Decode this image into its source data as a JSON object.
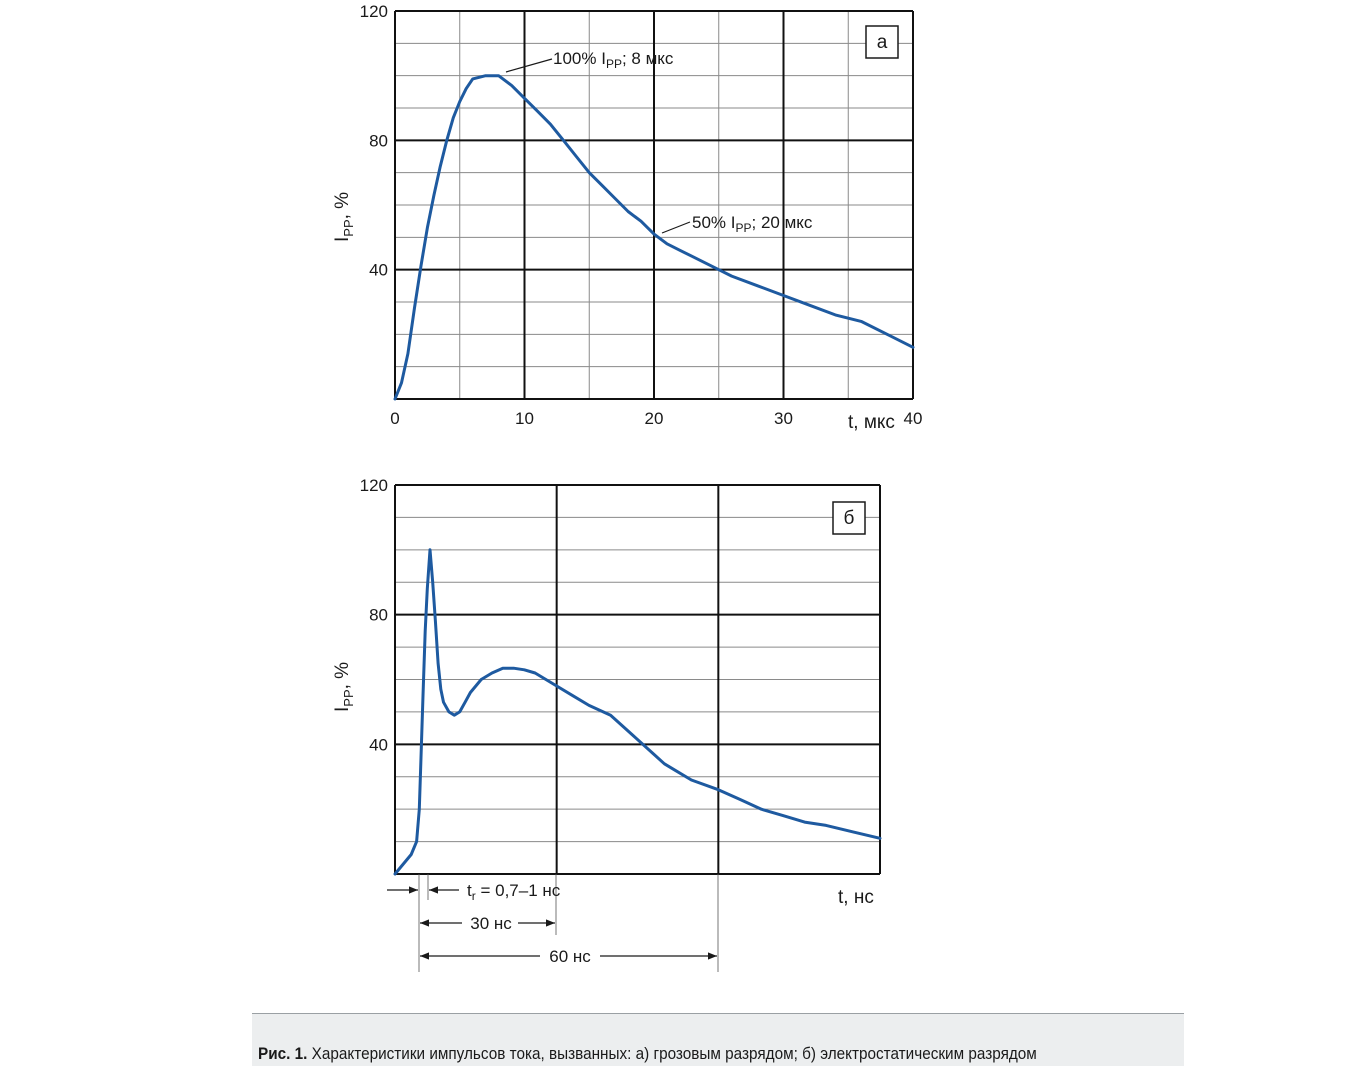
{
  "chart_data": [
    {
      "type": "line",
      "panel_label": "а",
      "xlabel": "t, мкс",
      "ylabel": "I_PP, %",
      "ylabel_main": "I",
      "ylabel_sub": "PP",
      "ylabel_rest": ", %",
      "xlim": [
        0,
        40
      ],
      "ylim": [
        0,
        120
      ],
      "x_ticks": [
        "0",
        "10",
        "20",
        "30",
        "40"
      ],
      "y_ticks": [
        "40",
        "80",
        "120"
      ],
      "grid": true,
      "series": [
        {
          "color": "#1e5aa0",
          "x": [
            0,
            0.5,
            1,
            1.5,
            2,
            2.5,
            3,
            3.5,
            4,
            4.5,
            5,
            5.5,
            6,
            6.5,
            7,
            7.5,
            8,
            9,
            10,
            11,
            12,
            13,
            14,
            15,
            16,
            17,
            18,
            19,
            20,
            21,
            22,
            23,
            24,
            25,
            26,
            28,
            30,
            32,
            34,
            35,
            36,
            38,
            40
          ],
          "y": [
            0,
            5,
            14,
            28,
            41,
            53,
            63,
            72,
            80,
            87,
            92,
            96,
            99,
            99.5,
            100,
            100,
            100,
            97,
            93,
            89,
            85,
            80,
            75,
            70,
            66,
            62,
            58,
            55,
            51,
            48,
            46,
            44,
            42,
            40,
            38,
            35,
            32,
            29,
            26,
            25,
            24,
            20,
            16
          ]
        }
      ],
      "annotations": [
        {
          "main": "100% I",
          "sub": "PP",
          "rest": "; 8 мкс",
          "at_x": 8,
          "at_y": 100
        },
        {
          "main": "50% I",
          "sub": "PP",
          "rest": "; 20 мкс",
          "at_x": 20,
          "at_y": 50
        }
      ]
    },
    {
      "type": "line",
      "panel_label": "б",
      "xlabel": "t, нс",
      "ylabel": "I_PP, %",
      "ylabel_main": "I",
      "ylabel_sub": "PP",
      "ylabel_rest": ", %",
      "xlim": [
        0,
        90
      ],
      "ylim": [
        0,
        120
      ],
      "y_ticks": [
        "40",
        "80",
        "120"
      ],
      "grid": true,
      "series": [
        {
          "color": "#1e5aa0",
          "x": [
            0,
            1,
            2,
            3,
            4,
            4.5,
            4.8,
            5.2,
            5.6,
            6,
            6.5,
            7,
            7.5,
            8,
            8.5,
            9,
            10,
            11,
            12,
            13,
            14,
            16,
            18,
            20,
            22,
            24,
            26,
            28,
            30,
            33,
            36,
            40,
            44,
            48,
            50,
            52,
            55,
            60,
            64,
            68,
            72,
            76,
            80,
            85,
            90
          ],
          "y": [
            0,
            2,
            4,
            6,
            10,
            20,
            35,
            55,
            75,
            88,
            100,
            90,
            78,
            65,
            57,
            53,
            50,
            49,
            50,
            53,
            56,
            60,
            62,
            63.5,
            63.5,
            63,
            62,
            60,
            58,
            55,
            52,
            49,
            43,
            37,
            34,
            32,
            29,
            26,
            23,
            20,
            18,
            16,
            15,
            13,
            11
          ]
        }
      ],
      "dimensions": [
        {
          "main": "t",
          "sub": "r",
          "rest": " = 0,7–1 нс"
        },
        {
          "main": "30 нс"
        },
        {
          "main": "60 нс"
        }
      ]
    }
  ],
  "caption": {
    "label": "Рис. 1.",
    "text": " Характеристики импульсов тока, вызванных: а) грозовым разрядом; б) электростатическим разрядом"
  }
}
